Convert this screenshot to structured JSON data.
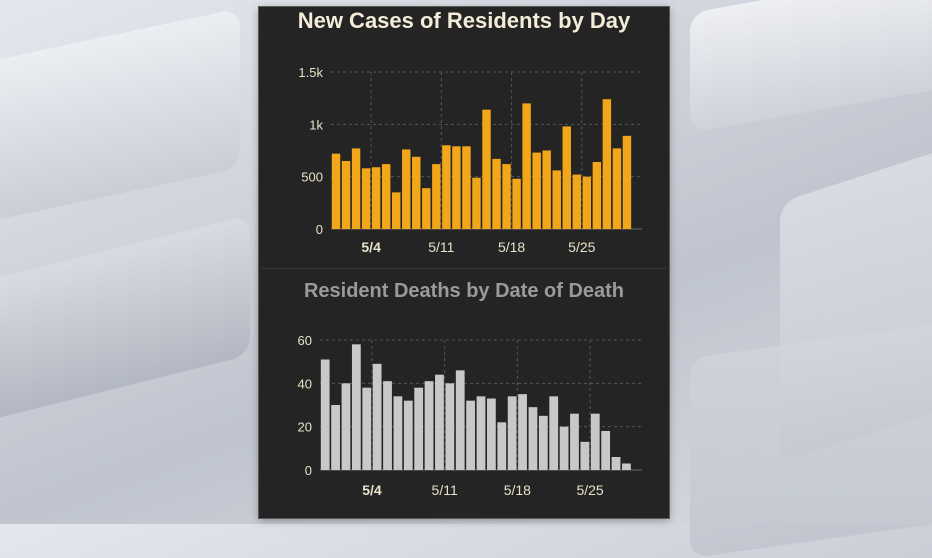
{
  "colors": {
    "cases_bar": "#f2a71b",
    "deaths_bar": "#c8c8c8",
    "panel_bg": "#242424",
    "axis_text": "#e8e2c8",
    "grid": "#555555"
  },
  "chart_data": [
    {
      "type": "bar",
      "title": "New Cases of Residents by Day",
      "xlabel": "",
      "ylabel": "",
      "ylim": [
        0,
        1500
      ],
      "yticks": [
        {
          "value": 0,
          "label": "0"
        },
        {
          "value": 500,
          "label": "500"
        },
        {
          "value": 1000,
          "label": "1k"
        },
        {
          "value": 1500,
          "label": "1.5k"
        }
      ],
      "xticks": [
        {
          "index": 4,
          "label": "5/4"
        },
        {
          "index": 11,
          "label": "5/11"
        },
        {
          "index": 18,
          "label": "5/18"
        },
        {
          "index": 25,
          "label": "5/25"
        }
      ],
      "categories": [
        "4/30",
        "5/1",
        "5/2",
        "5/3",
        "5/4",
        "5/5",
        "5/6",
        "5/7",
        "5/8",
        "5/9",
        "5/10",
        "5/11",
        "5/12",
        "5/13",
        "5/14",
        "5/15",
        "5/16",
        "5/17",
        "5/18",
        "5/19",
        "5/20",
        "5/21",
        "5/22",
        "5/23",
        "5/24",
        "5/25",
        "5/26",
        "5/27",
        "5/28",
        "5/29",
        "5/30"
      ],
      "values": [
        720,
        650,
        770,
        580,
        590,
        620,
        350,
        760,
        690,
        390,
        620,
        800,
        790,
        790,
        490,
        1140,
        670,
        620,
        480,
        1200,
        730,
        750,
        560,
        980,
        520,
        500,
        640,
        1240,
        770,
        890,
        0
      ],
      "grid": true
    },
    {
      "type": "bar",
      "title": "Resident Deaths by Date of Death",
      "xlabel": "",
      "ylabel": "",
      "ylim": [
        0,
        60
      ],
      "yticks": [
        {
          "value": 0,
          "label": "0"
        },
        {
          "value": 20,
          "label": "20"
        },
        {
          "value": 40,
          "label": "40"
        },
        {
          "value": 60,
          "label": "60"
        }
      ],
      "xticks": [
        {
          "index": 5,
          "label": "5/4"
        },
        {
          "index": 12,
          "label": "5/11"
        },
        {
          "index": 19,
          "label": "5/18"
        },
        {
          "index": 26,
          "label": "5/25"
        }
      ],
      "categories": [
        "4/29",
        "4/30",
        "5/1",
        "5/2",
        "5/3",
        "5/4",
        "5/5",
        "5/6",
        "5/7",
        "5/8",
        "5/9",
        "5/10",
        "5/11",
        "5/12",
        "5/13",
        "5/14",
        "5/15",
        "5/16",
        "5/17",
        "5/18",
        "5/19",
        "5/20",
        "5/21",
        "5/22",
        "5/23",
        "5/24",
        "5/25",
        "5/26",
        "5/27",
        "5/28",
        "5/29"
      ],
      "values": [
        51,
        30,
        40,
        58,
        38,
        49,
        41,
        34,
        32,
        38,
        41,
        44,
        40,
        46,
        32,
        34,
        33,
        22,
        34,
        35,
        29,
        25,
        34,
        20,
        26,
        13,
        26,
        18,
        6,
        3,
        0
      ],
      "grid": true
    }
  ]
}
